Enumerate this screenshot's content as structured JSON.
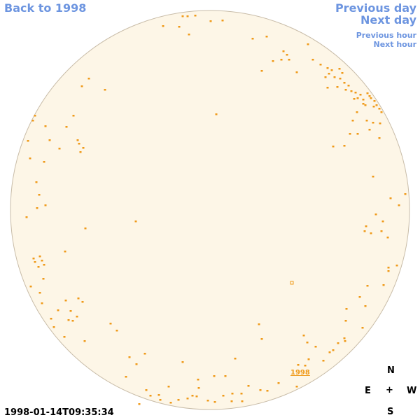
{
  "nav": {
    "back": "Back to 1998",
    "previous_day": "Previous day",
    "next_day": "Next day",
    "previous_hour": "Previous hour",
    "next_hour": "Next hour"
  },
  "compass": {
    "north": "N",
    "east": "E",
    "center": "+",
    "west": "W",
    "south": "S"
  },
  "timestamp": "1998-01-14T09:35:34",
  "year_link": "1998",
  "colors": {
    "disk_fill": "#fdf6e7",
    "disk_edge": "#c8bca8",
    "spots": "#ef9a1a",
    "links": "#6d95e0"
  }
}
